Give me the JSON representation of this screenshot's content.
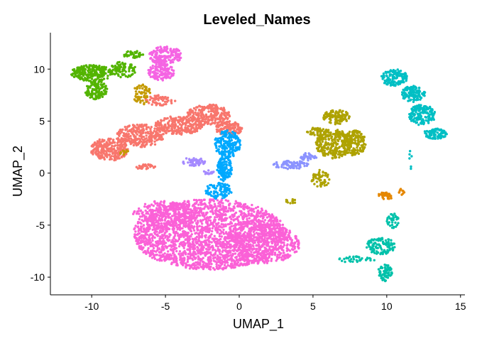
{
  "chart_data": {
    "type": "scatter",
    "title": "Leveled_Names",
    "xlabel": "UMAP_1",
    "ylabel": "UMAP_2",
    "xlim": [
      -12.8,
      15.3
    ],
    "ylim": [
      -11.7,
      13.5
    ],
    "xticks": [
      "-10",
      "-5",
      "0",
      "5",
      "10",
      "15"
    ],
    "yticks": [
      "-10",
      "-5",
      "0",
      "5",
      "10"
    ],
    "grid": false,
    "legend": "none",
    "clusters": [
      {
        "color": "#F8766D",
        "blobs": [
          {
            "cx": -8.8,
            "cy": 2.3,
            "rx": 1.3,
            "ry": 1.1,
            "n": 230
          },
          {
            "cx": -6.7,
            "cy": 3.6,
            "rx": 1.6,
            "ry": 1.1,
            "n": 260
          },
          {
            "cx": -4.1,
            "cy": 4.6,
            "rx": 1.6,
            "ry": 0.9,
            "n": 240
          },
          {
            "cx": -2.1,
            "cy": 5.6,
            "rx": 1.5,
            "ry": 1.0,
            "n": 240
          },
          {
            "cx": -0.7,
            "cy": 4.3,
            "rx": 0.9,
            "ry": 0.7,
            "n": 120
          },
          {
            "cx": -5.4,
            "cy": 7.0,
            "rx": 1.1,
            "ry": 0.5,
            "n": 60
          },
          {
            "cx": -6.4,
            "cy": 0.6,
            "rx": 0.7,
            "ry": 0.25,
            "n": 30
          }
        ]
      },
      {
        "color": "#C49A00",
        "blobs": [
          {
            "cx": -6.6,
            "cy": 7.6,
            "rx": 0.6,
            "ry": 1.0,
            "n": 60
          },
          {
            "cx": -7.8,
            "cy": 2.0,
            "rx": 0.3,
            "ry": 0.25,
            "n": 12
          }
        ]
      },
      {
        "color": "#53B400",
        "blobs": [
          {
            "cx": -10.0,
            "cy": 9.6,
            "rx": 1.4,
            "ry": 0.8,
            "n": 220
          },
          {
            "cx": -9.7,
            "cy": 8.0,
            "rx": 0.8,
            "ry": 0.9,
            "n": 110
          },
          {
            "cx": -7.9,
            "cy": 9.9,
            "rx": 0.9,
            "ry": 0.8,
            "n": 80
          },
          {
            "cx": -7.2,
            "cy": 11.4,
            "rx": 0.7,
            "ry": 0.4,
            "n": 40
          }
        ]
      },
      {
        "color": "#A58AFF",
        "blobs": [
          {
            "cx": -3.1,
            "cy": 1.1,
            "rx": 0.8,
            "ry": 0.4,
            "n": 50
          },
          {
            "cx": -2.1,
            "cy": 0.1,
            "rx": 0.4,
            "ry": 0.25,
            "n": 18
          }
        ]
      },
      {
        "color": "#00A9FF",
        "blobs": [
          {
            "cx": -0.8,
            "cy": 2.8,
            "rx": 0.9,
            "ry": 1.3,
            "n": 200
          },
          {
            "cx": -1.0,
            "cy": 0.4,
            "rx": 0.5,
            "ry": 1.2,
            "n": 120
          },
          {
            "cx": -1.4,
            "cy": -1.7,
            "rx": 0.9,
            "ry": 0.8,
            "n": 90
          }
        ]
      },
      {
        "color": "#FB61D7",
        "blobs": [
          {
            "cx": -2.0,
            "cy": -5.9,
            "rx": 5.2,
            "ry": 3.4,
            "n": 2200
          },
          {
            "cx": 1.5,
            "cy": -6.8,
            "rx": 2.6,
            "ry": 1.9,
            "n": 450
          },
          {
            "cx": -4.9,
            "cy": -4.0,
            "rx": 2.3,
            "ry": 1.4,
            "n": 250
          }
        ]
      },
      {
        "color": "#F564E3",
        "blobs": [
          {
            "cx": -5.0,
            "cy": 11.3,
            "rx": 1.1,
            "ry": 0.9,
            "n": 180
          },
          {
            "cx": -5.3,
            "cy": 9.7,
            "rx": 0.9,
            "ry": 0.8,
            "n": 130
          }
        ]
      },
      {
        "color": "#8B93FF",
        "blobs": [
          {
            "cx": 3.5,
            "cy": 0.8,
            "rx": 1.2,
            "ry": 0.4,
            "n": 80
          },
          {
            "cx": 4.7,
            "cy": 1.6,
            "rx": 0.6,
            "ry": 0.4,
            "n": 35
          }
        ]
      },
      {
        "color": "#AEA200",
        "blobs": [
          {
            "cx": 6.4,
            "cy": 2.8,
            "rx": 1.2,
            "ry": 1.4,
            "n": 260
          },
          {
            "cx": 7.8,
            "cy": 2.9,
            "rx": 0.8,
            "ry": 1.2,
            "n": 170
          },
          {
            "cx": 6.6,
            "cy": 5.4,
            "rx": 0.9,
            "ry": 0.7,
            "n": 110
          },
          {
            "cx": 5.3,
            "cy": 4.0,
            "rx": 0.7,
            "ry": 0.4,
            "n": 50
          },
          {
            "cx": 5.5,
            "cy": -0.6,
            "rx": 0.6,
            "ry": 0.9,
            "n": 55
          },
          {
            "cx": 3.5,
            "cy": -2.7,
            "rx": 0.4,
            "ry": 0.2,
            "n": 12
          }
        ]
      },
      {
        "color": "#00C1AA",
        "blobs": [
          {
            "cx": 9.6,
            "cy": -7.0,
            "rx": 1.0,
            "ry": 0.8,
            "n": 110
          },
          {
            "cx": 9.9,
            "cy": -9.6,
            "rx": 0.5,
            "ry": 0.8,
            "n": 70
          },
          {
            "cx": 8.0,
            "cy": -8.3,
            "rx": 1.3,
            "ry": 0.3,
            "n": 40
          },
          {
            "cx": 10.4,
            "cy": -4.6,
            "rx": 0.4,
            "ry": 0.8,
            "n": 35
          }
        ]
      },
      {
        "color": "#E58700",
        "blobs": [
          {
            "cx": 9.9,
            "cy": -2.2,
            "rx": 0.5,
            "ry": 0.4,
            "n": 35
          },
          {
            "cx": 11.0,
            "cy": -1.8,
            "rx": 0.2,
            "ry": 0.3,
            "n": 10
          }
        ]
      },
      {
        "color": "#00BFC4",
        "blobs": [
          {
            "cx": 10.5,
            "cy": 9.2,
            "rx": 0.9,
            "ry": 0.8,
            "n": 130
          },
          {
            "cx": 11.8,
            "cy": 7.6,
            "rx": 0.8,
            "ry": 0.8,
            "n": 110
          },
          {
            "cx": 12.4,
            "cy": 5.6,
            "rx": 0.9,
            "ry": 1.0,
            "n": 150
          },
          {
            "cx": 13.3,
            "cy": 3.8,
            "rx": 0.8,
            "ry": 0.5,
            "n": 90
          },
          {
            "cx": 11.6,
            "cy": 1.3,
            "rx": 0.1,
            "ry": 1.0,
            "n": 6
          }
        ]
      }
    ]
  }
}
